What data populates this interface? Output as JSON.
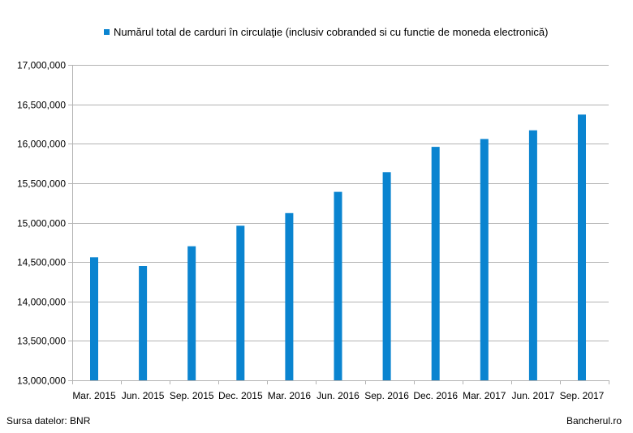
{
  "legend": {
    "label": "Numărul total de carduri în circulaţie    (inclusiv cobranded si cu functie de moneda electronică)"
  },
  "footer": {
    "source": "Sursa datelor: BNR",
    "brand": "Bancherul.ro"
  },
  "colors": {
    "bar": "#0a84d0",
    "grid": "#b3b3b3",
    "axis": "#b3b3b3"
  },
  "chart_data": {
    "type": "bar",
    "title": "",
    "xlabel": "",
    "ylabel": "",
    "legend_position": "top",
    "grid": true,
    "ylim": [
      13000000,
      17000000
    ],
    "yticks": [
      13000000,
      13500000,
      14000000,
      14500000,
      15000000,
      15500000,
      16000000,
      16500000,
      17000000
    ],
    "ytick_labels": [
      "13,000,000",
      "13,500,000",
      "14,000,000",
      "14,500,000",
      "15,000,000",
      "15,500,000",
      "16,000,000",
      "16,500,000",
      "17,000,000"
    ],
    "categories": [
      "Mar. 2015",
      "Jun. 2015",
      "Sep. 2015",
      "Dec. 2015",
      "Mar. 2016",
      "Jun. 2016",
      "Sep. 2016",
      "Dec. 2016",
      "Mar. 2017",
      "Jun. 2017",
      "Sep. 2017"
    ],
    "series": [
      {
        "name": "Numărul total de carduri în circulaţie    (inclusiv cobranded si cu functie de moneda electronică)",
        "values": [
          14560000,
          14450000,
          14700000,
          14960000,
          15120000,
          15390000,
          15640000,
          15960000,
          16060000,
          16170000,
          16370000
        ]
      }
    ]
  }
}
